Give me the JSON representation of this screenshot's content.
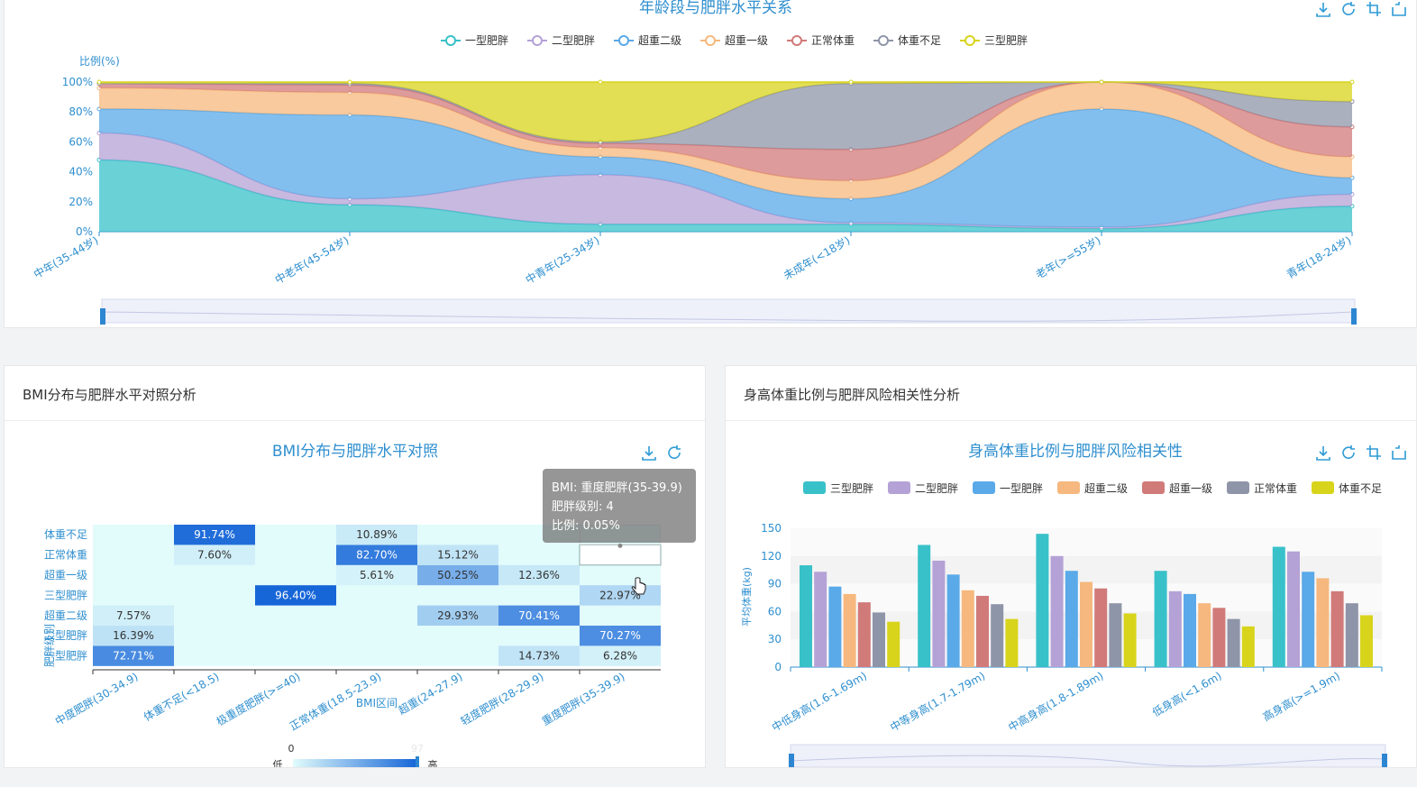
{
  "top_chart": {
    "title": "年龄段与肥胖水平关系",
    "ylabel": "比例(%)",
    "yticks": [
      "100%",
      "80%",
      "60%",
      "40%",
      "20%",
      "0%"
    ],
    "legend": [
      {
        "name": "一型肥胖",
        "color": "#38c1c9"
      },
      {
        "name": "二型肥胖",
        "color": "#b4a2d6"
      },
      {
        "name": "超重二级",
        "color": "#5aa9e8"
      },
      {
        "name": "超重一级",
        "color": "#f6b87e"
      },
      {
        "name": "正常体重",
        "color": "#d17a7a"
      },
      {
        "name": "体重不足",
        "color": "#8f95a8"
      },
      {
        "name": "三型肥胖",
        "color": "#d8d41c"
      }
    ]
  },
  "bmi_panel": {
    "header": "BMI分布与肥胖水平对照分析",
    "title": "BMI分布与肥胖水平对照",
    "xlabel": "BMI区间",
    "ylabel": "肥胖级别",
    "visual_map": {
      "min": "0",
      "max": "97",
      "low": "低",
      "high": "高"
    },
    "tooltip": {
      "line1": "BMI: 重度肥胖(35-39.9)",
      "line2": "肥胖级别: 4",
      "line3": "比例: 0.05%"
    }
  },
  "height_panel": {
    "header": "身高体重比例与肥胖风险相关性分析",
    "title": "身高体重比例与肥胖风险相关性",
    "ylabel": "平均体重(kg)",
    "yticks": [
      "150",
      "120",
      "90",
      "60",
      "30",
      "0"
    ]
  },
  "chart_data": [
    {
      "type": "area",
      "stacked": "percent",
      "categories": [
        "中年(35-44岁)",
        "中老年(45-54岁)",
        "中青年(25-34岁)",
        "未成年(<18岁)",
        "老年(>=55岁)",
        "青年(18-24岁)"
      ],
      "ylim": [
        0,
        100
      ],
      "series": [
        {
          "name": "一型肥胖",
          "values": [
            48,
            18,
            5,
            5,
            2,
            17
          ]
        },
        {
          "name": "二型肥胖",
          "values": [
            18,
            4,
            33,
            1,
            1,
            8
          ]
        },
        {
          "name": "超重二级",
          "values": [
            16,
            56,
            12,
            16,
            79,
            11
          ]
        },
        {
          "name": "超重一级",
          "values": [
            14,
            15,
            6,
            12,
            18,
            14
          ]
        },
        {
          "name": "正常体重",
          "values": [
            3,
            5,
            3,
            21,
            0,
            20
          ]
        },
        {
          "name": "体重不足",
          "values": [
            0,
            1,
            1,
            44,
            0,
            17
          ]
        },
        {
          "name": "三型肥胖",
          "values": [
            1,
            1,
            40,
            1,
            0,
            13
          ]
        }
      ]
    },
    {
      "type": "heatmap",
      "x": [
        "中度肥胖(30-34.9)",
        "体重不足(<18.5)",
        "极重度肥胖(>=40)",
        "正常体重(18.5-23.9)",
        "超重(24-27.9)",
        "轻度肥胖(28-29.9)",
        "重度肥胖(35-39.9)"
      ],
      "y": [
        "一型肥胖",
        "二型肥胖",
        "超重二级",
        "三型肥胖",
        "超重一级",
        "正常体重",
        "体重不足"
      ],
      "cells": [
        {
          "x": 0,
          "y": 0,
          "v": 72.71,
          "label": "72.71%"
        },
        {
          "x": 0,
          "y": 1,
          "v": 16.39,
          "label": "16.39%"
        },
        {
          "x": 0,
          "y": 2,
          "v": 7.57,
          "label": "7.57%"
        },
        {
          "x": 5,
          "y": 0,
          "v": 14.73,
          "label": "14.73%"
        },
        {
          "x": 6,
          "y": 0,
          "v": 6.28,
          "label": "6.28%"
        },
        {
          "x": 6,
          "y": 1,
          "v": 70.27,
          "label": "70.27%"
        },
        {
          "x": 4,
          "y": 2,
          "v": 29.93,
          "label": "29.93%"
        },
        {
          "x": 5,
          "y": 2,
          "v": 70.41,
          "label": "70.41%"
        },
        {
          "x": 2,
          "y": 3,
          "v": 96.4,
          "label": "96.40%"
        },
        {
          "x": 6,
          "y": 3,
          "v": 22.97,
          "label": "22.97%"
        },
        {
          "x": 3,
          "y": 4,
          "v": 5.61,
          "label": "5.61%"
        },
        {
          "x": 4,
          "y": 4,
          "v": 50.25,
          "label": "50.25%"
        },
        {
          "x": 5,
          "y": 4,
          "v": 12.36,
          "label": "12.36%"
        },
        {
          "x": 1,
          "y": 5,
          "v": 7.6,
          "label": "7.60%"
        },
        {
          "x": 3,
          "y": 5,
          "v": 82.7,
          "label": "82.70%"
        },
        {
          "x": 4,
          "y": 5,
          "v": 15.12,
          "label": "15.12%"
        },
        {
          "x": 1,
          "y": 6,
          "v": 91.74,
          "label": "91.74%"
        },
        {
          "x": 3,
          "y": 6,
          "v": 10.89,
          "label": "10.89%"
        }
      ]
    },
    {
      "type": "bar",
      "categories": [
        "中低身高(1.6-1.69m)",
        "中等身高(1.7-1.79m)",
        "中高身高(1.8-1.89m)",
        "低身高(<1.6m)",
        "高身高(>=1.9m)"
      ],
      "ylim": [
        0,
        150
      ],
      "series": [
        {
          "name": "三型肥胖",
          "color": "#38c1c9",
          "values": [
            110,
            132,
            144,
            104,
            130
          ]
        },
        {
          "name": "二型肥胖",
          "color": "#b4a2d6",
          "values": [
            103,
            115,
            120,
            82,
            125
          ]
        },
        {
          "name": "一型肥胖",
          "color": "#5aa9e8",
          "values": [
            87,
            100,
            104,
            79,
            103
          ]
        },
        {
          "name": "超重二级",
          "color": "#f6b87e",
          "values": [
            79,
            83,
            92,
            69,
            96
          ]
        },
        {
          "name": "超重一级",
          "color": "#d17a7a",
          "values": [
            70,
            77,
            85,
            64,
            82
          ]
        },
        {
          "name": "正常体重",
          "color": "#8f95a8",
          "values": [
            59,
            68,
            69,
            52,
            69
          ]
        },
        {
          "name": "体重不足",
          "color": "#d8d41c",
          "values": [
            49,
            52,
            58,
            44,
            56
          ]
        }
      ]
    }
  ]
}
